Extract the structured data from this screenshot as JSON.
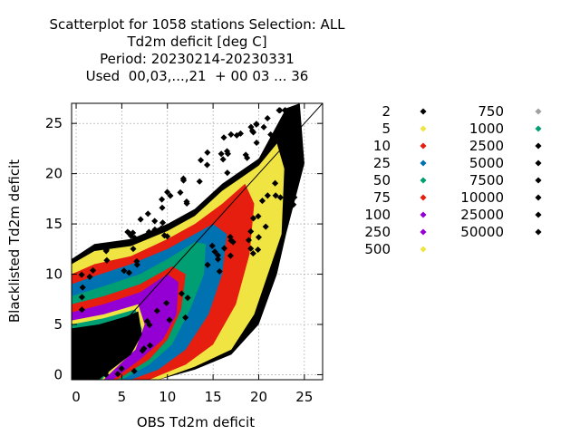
{
  "chart_data": {
    "type": "scatter",
    "title_lines": [
      "Scatterplot for 1058 stations Selection: ALL",
      "Td2m deficit [deg C]",
      "Period: 20230214-20230331",
      "Used  00,03,...,21  + 00 03 ... 36"
    ],
    "xlabel": "OBS Td2m deficit",
    "ylabel": "Blacklisted Td2m deficit",
    "xlim": [
      -0.5,
      27
    ],
    "ylim": [
      -0.5,
      27
    ],
    "x_ticks": [
      "0",
      "5",
      "10",
      "15",
      "20",
      "25"
    ],
    "y_ticks": [
      "0",
      "5",
      "10",
      "15",
      "20",
      "25"
    ],
    "x_tick_values": [
      0,
      5,
      10,
      15,
      20,
      25
    ],
    "y_tick_values": [
      0,
      5,
      10,
      15,
      20,
      25
    ],
    "grid": true,
    "diagonal": true,
    "legend_position": "right",
    "legend": [
      {
        "label": "2",
        "color": "#000000"
      },
      {
        "label": "5",
        "color": "#f0e442"
      },
      {
        "label": "10",
        "color": "#e51e10"
      },
      {
        "label": "25",
        "color": "#0072b2"
      },
      {
        "label": "50",
        "color": "#009e73"
      },
      {
        "label": "75",
        "color": "#e51e10"
      },
      {
        "label": "100",
        "color": "#9400d3"
      },
      {
        "label": "250",
        "color": "#9400d3"
      },
      {
        "label": "500",
        "color": "#f0e442"
      },
      {
        "label": "750",
        "color": "#a0a0a0"
      },
      {
        "label": "1000",
        "color": "#009e73"
      },
      {
        "label": "2500",
        "color": "#000000"
      },
      {
        "label": "5000",
        "color": "#000000"
      },
      {
        "label": "7500",
        "color": "#000000"
      },
      {
        "label": "10000",
        "color": "#000000"
      },
      {
        "label": "25000",
        "color": "#000000"
      },
      {
        "label": "50000",
        "color": "#000000"
      }
    ],
    "density_layers": [
      {
        "color": "#000000",
        "polygon": [
          [
            -0.5,
            11.5
          ],
          [
            2,
            13
          ],
          [
            6,
            13.5
          ],
          [
            10,
            15
          ],
          [
            13,
            16.5
          ],
          [
            16,
            19
          ],
          [
            20,
            21.5
          ],
          [
            23,
            26.5
          ],
          [
            24.5,
            27
          ],
          [
            25,
            21
          ],
          [
            23,
            14
          ],
          [
            22,
            10
          ],
          [
            20,
            5
          ],
          [
            17,
            2
          ],
          [
            13,
            0.5
          ],
          [
            9,
            -0.5
          ],
          [
            -0.5,
            -0.5
          ]
        ]
      },
      {
        "color": "#f0e442",
        "polygon": [
          [
            -0.5,
            11
          ],
          [
            2,
            12.3
          ],
          [
            6,
            12.8
          ],
          [
            10,
            14.3
          ],
          [
            13,
            15.8
          ],
          [
            16,
            18.3
          ],
          [
            20,
            20.8
          ],
          [
            22,
            23
          ],
          [
            22.8,
            20.5
          ],
          [
            22.5,
            14
          ],
          [
            21,
            10
          ],
          [
            19.5,
            6
          ],
          [
            17,
            2.5
          ],
          [
            13,
            0.8
          ],
          [
            9,
            -0.5
          ],
          [
            -0.5,
            -0.5
          ]
        ]
      },
      {
        "color": "#e51e10",
        "polygon": [
          [
            -0.5,
            10
          ],
          [
            2,
            11
          ],
          [
            6,
            11.8
          ],
          [
            10,
            13.5
          ],
          [
            13,
            15
          ],
          [
            16,
            17
          ],
          [
            18.5,
            19
          ],
          [
            19.5,
            17
          ],
          [
            19,
            12
          ],
          [
            17.5,
            7
          ],
          [
            15,
            3
          ],
          [
            12,
            1
          ],
          [
            8,
            -0.5
          ],
          [
            -0.5,
            -0.5
          ]
        ]
      },
      {
        "color": "#0072b2",
        "polygon": [
          [
            -0.5,
            9
          ],
          [
            2,
            9.8
          ],
          [
            6,
            11
          ],
          [
            10,
            12.5
          ],
          [
            13,
            14
          ],
          [
            15,
            15
          ],
          [
            16.5,
            14
          ],
          [
            16,
            10
          ],
          [
            14.5,
            6
          ],
          [
            12,
            2.5
          ],
          [
            9,
            0.5
          ],
          [
            6,
            -0.5
          ],
          [
            -0.5,
            -0.5
          ]
        ]
      },
      {
        "color": "#009e73",
        "polygon": [
          [
            -0.5,
            7.8
          ],
          [
            3,
            8.8
          ],
          [
            7,
            10
          ],
          [
            10,
            11.5
          ],
          [
            13,
            13.2
          ],
          [
            14.2,
            13
          ],
          [
            14,
            10
          ],
          [
            12.5,
            6.5
          ],
          [
            10.5,
            3
          ],
          [
            8,
            1
          ],
          [
            5,
            -0.5
          ],
          [
            -0.5,
            -0.5
          ]
        ]
      },
      {
        "color": "#e51e10",
        "polygon": [
          [
            -0.5,
            7
          ],
          [
            3,
            7.8
          ],
          [
            7,
            9
          ],
          [
            10.5,
            10.8
          ],
          [
            12,
            10
          ],
          [
            11.5,
            6.5
          ],
          [
            10,
            3.5
          ],
          [
            8,
            1.5
          ],
          [
            4.5,
            -0.5
          ],
          [
            -0.5,
            -0.5
          ]
        ]
      },
      {
        "color": "#9400d3",
        "polygon": [
          [
            -0.5,
            6.2
          ],
          [
            3,
            7
          ],
          [
            7,
            8.2
          ],
          [
            10,
            10
          ],
          [
            11.2,
            9.2
          ],
          [
            11,
            6
          ],
          [
            9.5,
            3.5
          ],
          [
            7,
            1.5
          ],
          [
            4,
            -0.5
          ],
          [
            -0.5,
            -0.5
          ]
        ]
      },
      {
        "color": "#f0e442",
        "polygon": [
          [
            -0.5,
            5.4
          ],
          [
            3,
            6
          ],
          [
            6.8,
            7
          ],
          [
            7.5,
            5
          ],
          [
            6.5,
            2.5
          ],
          [
            4.5,
            0.8
          ],
          [
            3,
            -0.5
          ],
          [
            -0.5,
            -0.5
          ]
        ]
      },
      {
        "color": "#009e73",
        "polygon": [
          [
            -0.5,
            5
          ],
          [
            3,
            5.6
          ],
          [
            6.5,
            6.5
          ],
          [
            7.2,
            4.5
          ],
          [
            6,
            2.2
          ],
          [
            4,
            0.7
          ],
          [
            2.8,
            -0.5
          ],
          [
            -0.5,
            -0.5
          ]
        ]
      },
      {
        "color": "#000000",
        "polygon": [
          [
            -0.5,
            4.6
          ],
          [
            2.5,
            5
          ],
          [
            5.5,
            5.8
          ],
          [
            6.8,
            6.3
          ],
          [
            7.2,
            4
          ],
          [
            6,
            2
          ],
          [
            4,
            0.6
          ],
          [
            2.5,
            -0.5
          ],
          [
            -0.5,
            -0.5
          ]
        ]
      }
    ]
  }
}
